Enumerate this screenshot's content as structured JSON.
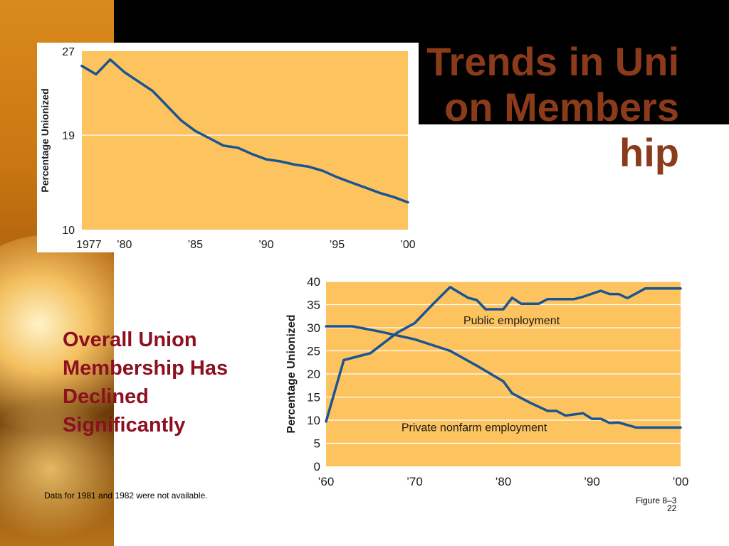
{
  "slide": {
    "title": "Trends in Union Membership",
    "subheading": "Overall Union Membership Has Declined Significantly",
    "footnote": "Data for 1981 and 1982 were not available.",
    "figure_label": "Figure 8–3",
    "slide_number": "22"
  },
  "colors": {
    "plot_bg": "#fdc35f",
    "line": "#1a5592",
    "title": "#8b3b1a",
    "subheading": "#8c1020"
  },
  "chart_data": [
    {
      "type": "line",
      "title": "",
      "xlabel": "",
      "ylabel": "Percentage Unionized",
      "xlim": [
        1977,
        2000
      ],
      "ylim": [
        10,
        27
      ],
      "x_ticks": [
        1977,
        1980,
        1985,
        1990,
        1995,
        2000
      ],
      "x_tick_labels": [
        "1977",
        "’80",
        "’85",
        "’90",
        "’95",
        "’00"
      ],
      "y_ticks": [
        27,
        19,
        10
      ],
      "y_tick_labels": [
        "27",
        "19",
        "10"
      ],
      "grid": "horizontal at 19",
      "series": [
        {
          "x": [
            1977,
            1978,
            1979,
            1980,
            1981,
            1982,
            1983,
            1984,
            1985,
            1986,
            1987,
            1988,
            1989,
            1990,
            1991,
            1992,
            1993,
            1994,
            1995,
            1996,
            1997,
            1998,
            1999,
            2000
          ],
          "values": [
            25.6,
            24.8,
            26.2,
            25.0,
            24.1,
            23.2,
            21.8,
            20.4,
            19.4,
            18.7,
            18.0,
            17.8,
            17.2,
            16.7,
            16.5,
            16.2,
            16.0,
            15.6,
            15.0,
            14.5,
            14.0,
            13.5,
            13.1,
            12.6
          ]
        }
      ]
    },
    {
      "type": "line",
      "title": "",
      "xlabel": "",
      "ylabel": "Percentage Unionized",
      "xlim": [
        1960,
        2000
      ],
      "ylim": [
        0,
        40
      ],
      "x_ticks": [
        1960,
        1970,
        1980,
        1990,
        2000
      ],
      "x_tick_labels": [
        "’60",
        "’70",
        "’80",
        "’90",
        "’00"
      ],
      "y_ticks": [
        0,
        5,
        10,
        15,
        20,
        25,
        30,
        35,
        40
      ],
      "y_tick_labels": [
        "0",
        "5",
        "10",
        "15",
        "20",
        "25",
        "30",
        "35",
        "40"
      ],
      "grid": "horizontal",
      "series": [
        {
          "name": "Public employment",
          "x": [
            1960,
            1962,
            1965,
            1968,
            1970,
            1972,
            1974,
            1976,
            1977,
            1978,
            1980,
            1981,
            1982,
            1984,
            1985,
            1988,
            1989,
            1991,
            1992,
            1993,
            1994,
            1996,
            1998,
            2000
          ],
          "values": [
            9.7,
            23,
            24.5,
            28.9,
            31,
            35,
            38.8,
            36.5,
            36,
            34,
            34,
            36.5,
            35.2,
            35.2,
            36.2,
            36.2,
            36.7,
            38,
            37.3,
            37.3,
            36.4,
            38.5,
            38.5,
            38.5
          ]
        },
        {
          "name": "Private nonfarm employment",
          "x": [
            1960,
            1963,
            1966,
            1970,
            1974,
            1977,
            1980,
            1981,
            1983,
            1985,
            1986,
            1987,
            1989,
            1990,
            1991,
            1992,
            1993,
            1995,
            1997,
            2000
          ],
          "values": [
            30.3,
            30.3,
            29.2,
            27.5,
            25.0,
            21.8,
            18.4,
            15.8,
            13.8,
            12.0,
            12.0,
            11.0,
            11.5,
            10.3,
            10.3,
            9.4,
            9.5,
            8.4,
            8.4,
            8.4
          ]
        }
      ]
    }
  ]
}
